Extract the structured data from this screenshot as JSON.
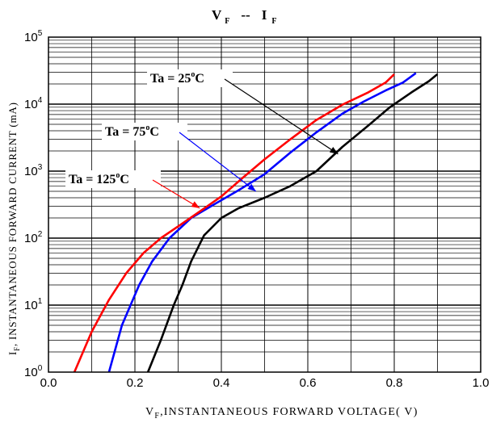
{
  "chart_data": {
    "type": "line",
    "title": {
      "main_v": "V",
      "main_v_sub": "F",
      "separator": "--",
      "main_i": "I",
      "main_i_sub": "F"
    },
    "xlabel": {
      "v": "V",
      "sub": "F",
      "rest": ",INSTANTANEOUS  FORWARD  VOLTAGE( V)"
    },
    "ylabel": {
      "i": "I",
      "sub": "F",
      "rest": ", INSTANTANEOUS  FORWARD CURRENT (mA)"
    },
    "x_scale": "linear",
    "y_scale": "log",
    "xlim": [
      0.0,
      1.0
    ],
    "ylim": [
      1,
      100000
    ],
    "grid": true,
    "x_ticks": [
      {
        "value": 0.0,
        "label": "0.0"
      },
      {
        "value": 0.2,
        "label": "0.2"
      },
      {
        "value": 0.4,
        "label": "0.4"
      },
      {
        "value": 0.6,
        "label": "0.6"
      },
      {
        "value": 0.8,
        "label": "0.8"
      },
      {
        "value": 1.0,
        "label": "1.0"
      }
    ],
    "y_ticks": [
      {
        "value": 1,
        "base": "10",
        "exp": "0"
      },
      {
        "value": 10,
        "base": "10",
        "exp": "1"
      },
      {
        "value": 100,
        "base": "10",
        "exp": "2"
      },
      {
        "value": 1000,
        "base": "10",
        "exp": "3"
      },
      {
        "value": 10000,
        "base": "10",
        "exp": "4"
      },
      {
        "value": 100000,
        "base": "10",
        "exp": "5"
      }
    ],
    "series": [
      {
        "name": "Ta = 25°C",
        "color": "#000000",
        "x": [
          0.23,
          0.26,
          0.29,
          0.31,
          0.33,
          0.36,
          0.4,
          0.44,
          0.5,
          0.56,
          0.62,
          0.68,
          0.74,
          0.79,
          0.84,
          0.88,
          0.9
        ],
        "y": [
          1,
          3,
          10,
          20,
          45,
          110,
          200,
          280,
          400,
          600,
          1000,
          2300,
          4800,
          9000,
          15000,
          22000,
          28000
        ]
      },
      {
        "name": "Ta = 75°C",
        "color": "#0000ff",
        "x": [
          0.14,
          0.17,
          0.21,
          0.24,
          0.28,
          0.33,
          0.38,
          0.44,
          0.5,
          0.56,
          0.62,
          0.68,
          0.73,
          0.78,
          0.82,
          0.85
        ],
        "y": [
          1,
          5,
          20,
          45,
          100,
          200,
          310,
          520,
          900,
          1900,
          3800,
          7200,
          11000,
          16000,
          21000,
          29000
        ]
      },
      {
        "name": "Ta = 125°C",
        "color": "#ff0000",
        "x": [
          0.06,
          0.1,
          0.14,
          0.18,
          0.22,
          0.26,
          0.3,
          0.35,
          0.4,
          0.45,
          0.5,
          0.56,
          0.62,
          0.68,
          0.74,
          0.78,
          0.8
        ],
        "y": [
          1,
          4,
          12,
          30,
          60,
          100,
          150,
          250,
          420,
          800,
          1500,
          3000,
          5800,
          9800,
          15000,
          21000,
          28000
        ]
      }
    ],
    "annotations": [
      {
        "series": 0,
        "temp": "25",
        "deg": "o",
        "unit": "C",
        "prefix": "Ta = ",
        "arrow_to": [
          0.67,
          1800
        ]
      },
      {
        "series": 1,
        "temp": "75",
        "deg": "o",
        "unit": "C",
        "prefix": "Ta = ",
        "arrow_to": [
          0.48,
          500
        ]
      },
      {
        "series": 2,
        "temp": "125",
        "deg": "o",
        "unit": "C",
        "prefix": "Ta = ",
        "arrow_to": [
          0.35,
          280
        ]
      }
    ]
  }
}
